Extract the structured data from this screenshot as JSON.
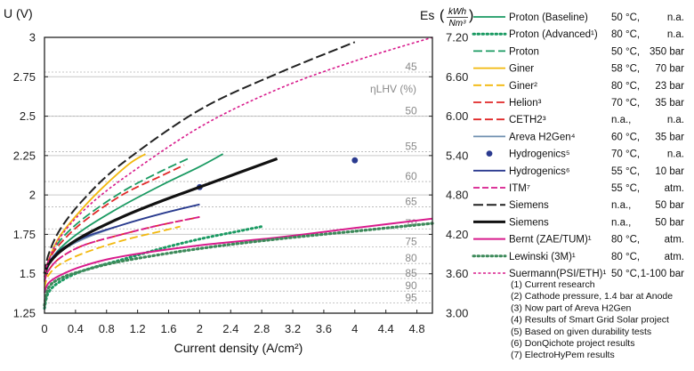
{
  "chart_data": {
    "type": "line",
    "xlabel": "Current density (A/cm²)",
    "ylabel": "U (V)",
    "y2label": "Es",
    "y2unit_num": "kWh",
    "y2unit_den": "Nm³",
    "eff_label": "ηLHV (%)",
    "xlim": [
      0,
      5
    ],
    "ylim": [
      1.25,
      3.0
    ],
    "x_ticks": [
      "0",
      "0.4",
      "0.8",
      "1.2",
      "1.6",
      "2",
      "2.4",
      "2.8",
      "3.2",
      "3.6",
      "4",
      "4.4",
      "4.8"
    ],
    "y_ticks": [
      "1.25",
      "1.5",
      "1.75",
      "2",
      "2.25",
      "2.5",
      "2.75",
      "3"
    ],
    "y2_ticks": [
      "3.00",
      "3.60",
      "4.20",
      "4.80",
      "5.40",
      "6.00",
      "6.60",
      "7.20"
    ],
    "efficiency_lines": [
      {
        "label": "45",
        "voltage": 2.78
      },
      {
        "label": "50",
        "voltage": 2.5
      },
      {
        "label": "55",
        "voltage": 2.275
      },
      {
        "label": "60",
        "voltage": 2.085
      },
      {
        "label": "65",
        "voltage": 1.925
      },
      {
        "label": "70",
        "voltage": 1.785
      },
      {
        "label": "75",
        "voltage": 1.67
      },
      {
        "label": "80",
        "voltage": 1.565
      },
      {
        "label": "85",
        "voltage": 1.47
      },
      {
        "label": "90",
        "voltage": 1.39
      },
      {
        "label": "95",
        "voltage": 1.315
      }
    ],
    "series": [
      {
        "name": "Proton (Baseline)",
        "temp": "50 °C,",
        "pressure": "n.a.",
        "color": "#1a9a62",
        "dash": "",
        "width": 1.8,
        "marker": "line",
        "x": [
          0,
          0.05,
          0.2,
          0.5,
          1.0,
          1.5,
          2.0,
          2.3
        ],
        "y": [
          1.45,
          1.55,
          1.66,
          1.78,
          1.93,
          2.06,
          2.18,
          2.26
        ]
      },
      {
        "name": "Proton (Advanced¹)",
        "temp": "80 °C,",
        "pressure": "n.a.",
        "color": "#1a9a62",
        "dash": "1.5,3.5",
        "width": 3,
        "marker": "dotline",
        "x": [
          0,
          0.05,
          0.2,
          0.5,
          1.0,
          1.5,
          2.0,
          2.5,
          2.8
        ],
        "y": [
          1.28,
          1.38,
          1.45,
          1.52,
          1.59,
          1.66,
          1.72,
          1.77,
          1.8
        ]
      },
      {
        "name": "Proton",
        "temp": "50 °C,",
        "pressure": "350 bar",
        "color": "#1a9a62",
        "dash": "10,4",
        "width": 1.8,
        "marker": "line",
        "x": [
          0,
          0.05,
          0.2,
          0.5,
          1.0,
          1.5,
          1.85
        ],
        "y": [
          1.46,
          1.58,
          1.71,
          1.85,
          2.02,
          2.15,
          2.23
        ]
      },
      {
        "name": "Giner",
        "temp": "58 °C,",
        "pressure": "70 bar",
        "color": "#f2b80c",
        "dash": "",
        "width": 1.8,
        "marker": "line",
        "x": [
          0,
          0.05,
          0.2,
          0.5,
          0.8,
          1.1,
          1.3
        ],
        "y": [
          1.45,
          1.58,
          1.74,
          1.92,
          2.07,
          2.2,
          2.26
        ]
      },
      {
        "name": "Giner²",
        "temp": "80 °C,",
        "pressure": "23 bar",
        "color": "#f2b80c",
        "dash": "9,4",
        "width": 1.8,
        "marker": "line",
        "x": [
          0,
          0.05,
          0.2,
          0.5,
          1.0,
          1.5,
          1.75
        ],
        "y": [
          1.41,
          1.49,
          1.56,
          1.63,
          1.71,
          1.77,
          1.8
        ]
      },
      {
        "name": "Helion³",
        "temp": "70 °C,",
        "pressure": "35 bar",
        "color": "#e02828",
        "dash": "9,4",
        "width": 1.8,
        "marker": "line",
        "x": [
          0,
          0.05,
          0.2,
          0.5,
          1.0,
          1.5,
          2.0
        ],
        "y": [
          1.45,
          1.52,
          1.6,
          1.68,
          1.75,
          1.81,
          1.86
        ]
      },
      {
        "name": "CETH2³",
        "temp": "n.a.,",
        "pressure": "n.a.",
        "color": "#e02828",
        "dash": "9,4",
        "width": 1.8,
        "marker": "line",
        "x": [
          0,
          0.05,
          0.2,
          0.5,
          1.0,
          1.5,
          1.8
        ],
        "y": [
          1.48,
          1.58,
          1.69,
          1.83,
          2.0,
          2.12,
          2.19
        ]
      },
      {
        "name": "Areva H2Gen⁴",
        "temp": "60 °C,",
        "pressure": "35 bar",
        "color": "#6f8fb0",
        "dash": "",
        "width": 1.8,
        "marker": "line",
        "x": [
          0,
          0.05,
          0.2,
          0.5,
          1.0,
          1.5,
          2.0
        ],
        "y": [
          1.48,
          1.56,
          1.64,
          1.72,
          1.81,
          1.88,
          1.94
        ]
      },
      {
        "name": "Hydrogenics⁵",
        "temp": "70 °C,",
        "pressure": "n.a.",
        "color": "#2a3a8f",
        "dash": "",
        "width": 0,
        "marker": "dot",
        "x": [
          2.0,
          4.0
        ],
        "y": [
          2.05,
          2.22
        ]
      },
      {
        "name": "Hydrogenics⁶",
        "temp": "55 °C,",
        "pressure": "10 bar",
        "color": "#2a3a8f",
        "dash": "",
        "width": 1.8,
        "marker": "line",
        "x": [
          0,
          0.05,
          0.2,
          0.5,
          1.0,
          1.5,
          2.0
        ],
        "y": [
          1.5,
          1.57,
          1.65,
          1.73,
          1.81,
          1.88,
          1.94
        ]
      },
      {
        "name": "ITM⁷",
        "temp": "55 °C,",
        "pressure": "atm.",
        "color": "#d81b8c",
        "dash": "7,3",
        "width": 1.8,
        "marker": "line",
        "x": [
          0,
          0.05,
          0.2,
          0.5,
          1.0,
          1.5,
          2.0
        ],
        "y": [
          1.45,
          1.52,
          1.6,
          1.68,
          1.75,
          1.81,
          1.86
        ]
      },
      {
        "name": "Siemens",
        "temp": "n.a.,",
        "pressure": "50 bar",
        "color": "#222222",
        "dash": "11,4",
        "width": 2,
        "marker": "line",
        "x": [
          0,
          0.05,
          0.2,
          0.5,
          1.0,
          2.0,
          3.0,
          4.0
        ],
        "y": [
          1.5,
          1.62,
          1.78,
          1.97,
          2.2,
          2.54,
          2.77,
          2.97
        ]
      },
      {
        "name": "Siemens",
        "temp": "n.a.,",
        "pressure": "50 bar",
        "color": "#111111",
        "dash": "",
        "width": 3.2,
        "marker": "line",
        "x": [
          0,
          0.05,
          0.2,
          0.5,
          1.0,
          1.5,
          2.0,
          2.5,
          3.0
        ],
        "y": [
          1.5,
          1.56,
          1.64,
          1.74,
          1.86,
          1.96,
          2.05,
          2.14,
          2.23
        ]
      },
      {
        "name": "Bernt (ZAE/TUM)¹",
        "temp": "80 °C,",
        "pressure": "atm.",
        "color": "#d81b8c",
        "dash": "",
        "width": 2,
        "marker": "line",
        "x": [
          0,
          0.05,
          0.2,
          0.5,
          1.0,
          2.0,
          3.0,
          4.0,
          5.0
        ],
        "y": [
          1.38,
          1.44,
          1.49,
          1.55,
          1.61,
          1.68,
          1.73,
          1.79,
          1.85
        ]
      },
      {
        "name": "Lewinski (3M)¹",
        "temp": "80 °C,",
        "pressure": "atm.",
        "color": "#3d8a5a",
        "dash": "1.5,3.5",
        "width": 3.2,
        "marker": "dotline",
        "x": [
          0,
          0.05,
          0.2,
          0.5,
          1.0,
          2.0,
          3.0,
          4.0,
          5.0
        ],
        "y": [
          1.3,
          1.41,
          1.47,
          1.52,
          1.58,
          1.66,
          1.72,
          1.77,
          1.82
        ]
      },
      {
        "name": "Suermann(PSI/ETH)¹",
        "temp": "50 °C,",
        "pressure": "1-100 bar",
        "color": "#d81b8c",
        "dash": "3,2.5",
        "width": 1.6,
        "marker": "line",
        "x": [
          0,
          0.05,
          0.2,
          0.5,
          1.0,
          2.0,
          3.0,
          4.0,
          5.0
        ],
        "y": [
          1.48,
          1.58,
          1.73,
          1.9,
          2.1,
          2.43,
          2.67,
          2.85,
          3.0
        ]
      }
    ]
  },
  "footnotes": [
    "(1)  Current research",
    "(2)  Cathode pressure, 1.4 bar at Anode",
    "(3)  Now part of Areva H2Gen",
    "(4)  Results of Smart Grid Solar project",
    "(5)  Based on given durability tests",
    "(6)  DonQichote project results",
    "(7)  ElectroHyPem results"
  ]
}
